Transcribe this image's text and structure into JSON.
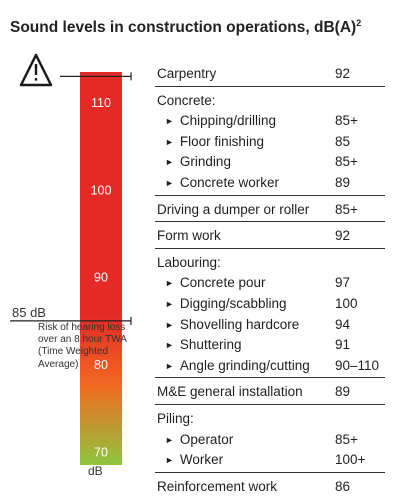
{
  "title": "Sound levels in construction operations, dB(A)",
  "title_note": "2",
  "gauge": {
    "marker_label": "85 dB",
    "risk_note": "Risk of hearing loss over an 8 hour TWA (Time Weighted Average)",
    "unit": "dB",
    "icon": "warning-triangle-icon",
    "colors": {
      "top": "#e42a27",
      "mid": "#f26a21",
      "bottom": "#8dc63f",
      "line": "#222222"
    }
  },
  "chart_data": {
    "type": "table",
    "title": "Sound levels in construction operations, dB(A)",
    "axis": {
      "unit": "dB",
      "ticks": [
        110,
        100,
        90,
        80,
        70
      ],
      "range": [
        68.5,
        113.5
      ],
      "reference_value": 85,
      "top_marker_value": 113
    },
    "items": [
      {
        "label": "Carpentry",
        "value": "92"
      },
      {
        "label": "Concrete:",
        "value": "",
        "children": [
          {
            "label": "Chipping/drilling",
            "value": "85+"
          },
          {
            "label": "Floor finishing",
            "value": "85"
          },
          {
            "label": "Grinding",
            "value": "85+"
          },
          {
            "label": "Concrete worker",
            "value": "89"
          }
        ]
      },
      {
        "label": "Driving a dumper or roller",
        "value": "85+"
      },
      {
        "label": "Form work",
        "value": "92"
      },
      {
        "label": "Labouring:",
        "value": "",
        "children": [
          {
            "label": "Concrete pour",
            "value": "97"
          },
          {
            "label": "Digging/scabbling",
            "value": "100"
          },
          {
            "label": "Shovelling hardcore",
            "value": "94"
          },
          {
            "label": "Shuttering",
            "value": "91"
          },
          {
            "label": "Angle grinding/cutting",
            "value": "90–110"
          }
        ]
      },
      {
        "label": "M&E general installation",
        "value": "89"
      },
      {
        "label": "Piling:",
        "value": "",
        "children": [
          {
            "label": "Operator",
            "value": "85+"
          },
          {
            "label": "Worker",
            "value": "100+"
          }
        ]
      },
      {
        "label": "Reinforcement work",
        "value": "86"
      }
    ]
  }
}
